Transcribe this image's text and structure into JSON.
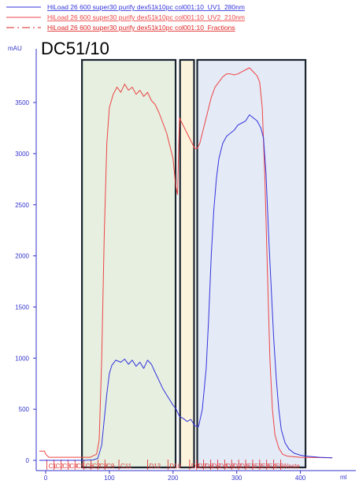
{
  "chart_data": {
    "type": "line",
    "title": "DC51/10",
    "ylabel": "mAU",
    "xlabel": "ml",
    "xlim": [
      -10,
      450
    ],
    "ylim": [
      -80,
      3950
    ],
    "xticks": [
      0,
      100,
      200,
      300,
      400
    ],
    "yticks": [
      0,
      500,
      1000,
      1500,
      2000,
      2500,
      3000,
      3500
    ],
    "grid": false,
    "legend_position": "top-left",
    "colors": {
      "uv280": "#3333dd",
      "uv210": "#ee4444",
      "fractions": "#dd2222",
      "box_green": "#e6efe0",
      "box_yellow": "#fbf3dc",
      "box_blue": "#e4eaf6",
      "box_border": "#1a2530"
    },
    "series": [
      {
        "name": "HiLoad 26 600 super30 purify dex51k10pc col001:10_UV1_280nm",
        "points": [
          [
            -10,
            0
          ],
          [
            60,
            0
          ],
          [
            75,
            5
          ],
          [
            82,
            20
          ],
          [
            88,
            150
          ],
          [
            92,
            400
          ],
          [
            96,
            650
          ],
          [
            100,
            850
          ],
          [
            104,
            930
          ],
          [
            110,
            980
          ],
          [
            118,
            960
          ],
          [
            124,
            990
          ],
          [
            130,
            940
          ],
          [
            136,
            980
          ],
          [
            142,
            920
          ],
          [
            148,
            960
          ],
          [
            154,
            900
          ],
          [
            160,
            980
          ],
          [
            166,
            940
          ],
          [
            172,
            860
          ],
          [
            178,
            780
          ],
          [
            184,
            700
          ],
          [
            190,
            640
          ],
          [
            196,
            580
          ],
          [
            200,
            540
          ],
          [
            205,
            500
          ],
          [
            210,
            430
          ],
          [
            216,
            410
          ],
          [
            222,
            380
          ],
          [
            228,
            400
          ],
          [
            234,
            340
          ],
          [
            240,
            330
          ],
          [
            246,
            500
          ],
          [
            252,
            900
          ],
          [
            256,
            1400
          ],
          [
            260,
            2000
          ],
          [
            264,
            2450
          ],
          [
            268,
            2750
          ],
          [
            272,
            2950
          ],
          [
            278,
            3100
          ],
          [
            284,
            3170
          ],
          [
            290,
            3200
          ],
          [
            296,
            3230
          ],
          [
            302,
            3280
          ],
          [
            308,
            3300
          ],
          [
            314,
            3320
          ],
          [
            320,
            3380
          ],
          [
            326,
            3350
          ],
          [
            332,
            3320
          ],
          [
            338,
            3250
          ],
          [
            342,
            3150
          ],
          [
            346,
            2800
          ],
          [
            350,
            2200
          ],
          [
            354,
            1700
          ],
          [
            358,
            1200
          ],
          [
            362,
            800
          ],
          [
            366,
            500
          ],
          [
            370,
            300
          ],
          [
            376,
            170
          ],
          [
            382,
            110
          ],
          [
            390,
            70
          ],
          [
            400,
            50
          ],
          [
            410,
            40
          ],
          [
            430,
            30
          ],
          [
            450,
            25
          ]
        ]
      },
      {
        "name": "HiLoad 26 600 super30 purify dex51k10pc col001:10_UV2_210nm",
        "points": [
          [
            -10,
            90
          ],
          [
            -2,
            90
          ],
          [
            0,
            60
          ],
          [
            5,
            30
          ],
          [
            40,
            30
          ],
          [
            70,
            30
          ],
          [
            80,
            60
          ],
          [
            84,
            200
          ],
          [
            88,
            1000
          ],
          [
            92,
            2200
          ],
          [
            96,
            3100
          ],
          [
            100,
            3450
          ],
          [
            106,
            3580
          ],
          [
            112,
            3650
          ],
          [
            118,
            3600
          ],
          [
            124,
            3680
          ],
          [
            130,
            3620
          ],
          [
            136,
            3650
          ],
          [
            142,
            3580
          ],
          [
            148,
            3620
          ],
          [
            154,
            3560
          ],
          [
            160,
            3600
          ],
          [
            166,
            3520
          ],
          [
            172,
            3480
          ],
          [
            178,
            3400
          ],
          [
            184,
            3300
          ],
          [
            190,
            3200
          ],
          [
            196,
            3050
          ],
          [
            200,
            2950
          ],
          [
            204,
            2700
          ],
          [
            207,
            2600
          ],
          [
            210,
            3350
          ],
          [
            214,
            3300
          ],
          [
            218,
            3250
          ],
          [
            222,
            3200
          ],
          [
            226,
            3150
          ],
          [
            230,
            3100
          ],
          [
            234,
            3050
          ],
          [
            238,
            3050
          ],
          [
            242,
            3100
          ],
          [
            248,
            3250
          ],
          [
            254,
            3400
          ],
          [
            260,
            3550
          ],
          [
            266,
            3650
          ],
          [
            272,
            3700
          ],
          [
            278,
            3750
          ],
          [
            284,
            3780
          ],
          [
            290,
            3780
          ],
          [
            296,
            3770
          ],
          [
            302,
            3780
          ],
          [
            308,
            3800
          ],
          [
            314,
            3820
          ],
          [
            320,
            3840
          ],
          [
            326,
            3800
          ],
          [
            332,
            3760
          ],
          [
            336,
            3700
          ],
          [
            340,
            3450
          ],
          [
            344,
            2800
          ],
          [
            348,
            1900
          ],
          [
            352,
            1000
          ],
          [
            356,
            500
          ],
          [
            360,
            250
          ],
          [
            366,
            120
          ],
          [
            372,
            60
          ],
          [
            380,
            40
          ],
          [
            400,
            30
          ],
          [
            450,
            25
          ]
        ]
      },
      {
        "name": "HiLoad 26 600 super30 purify dex51k10pc col001:10_Fractions"
      }
    ],
    "fractions": [
      {
        "label": "C1",
        "x": 2
      },
      {
        "label": "C2",
        "x": 13
      },
      {
        "label": "C3",
        "x": 24
      },
      {
        "label": "C4",
        "x": 35
      },
      {
        "label": "C5",
        "x": 46
      },
      {
        "label": "C6",
        "x": 60
      },
      {
        "label": "C7",
        "x": 71
      },
      {
        "label": "C8",
        "x": 82
      },
      {
        "label": "C9",
        "x": 93
      },
      {
        "label": "C11",
        "x": 115
      },
      {
        "label": "D12",
        "x": 160
      },
      {
        "label": "D10",
        "x": 192
      },
      {
        "label": "D8",
        "x": 226
      },
      {
        "label": "D7",
        "x": 237
      },
      {
        "label": "D6",
        "x": 248
      },
      {
        "label": "D5",
        "x": 259
      },
      {
        "label": "D4",
        "x": 270
      },
      {
        "label": "D3",
        "x": 281
      },
      {
        "label": "D2",
        "x": 292
      },
      {
        "label": "D1",
        "x": 303
      },
      {
        "label": "E1",
        "x": 314
      },
      {
        "label": "E2",
        "x": 325
      },
      {
        "label": "E3",
        "x": 336
      },
      {
        "label": "E4",
        "x": 347
      },
      {
        "label": "E5",
        "x": 358
      },
      {
        "label": "Waste",
        "x": 369
      }
    ],
    "regions": [
      {
        "name": "green",
        "x1": 57,
        "x2": 204
      },
      {
        "name": "yellow",
        "x1": 211,
        "x2": 233
      },
      {
        "name": "blue",
        "x1": 238,
        "x2": 408
      }
    ]
  }
}
